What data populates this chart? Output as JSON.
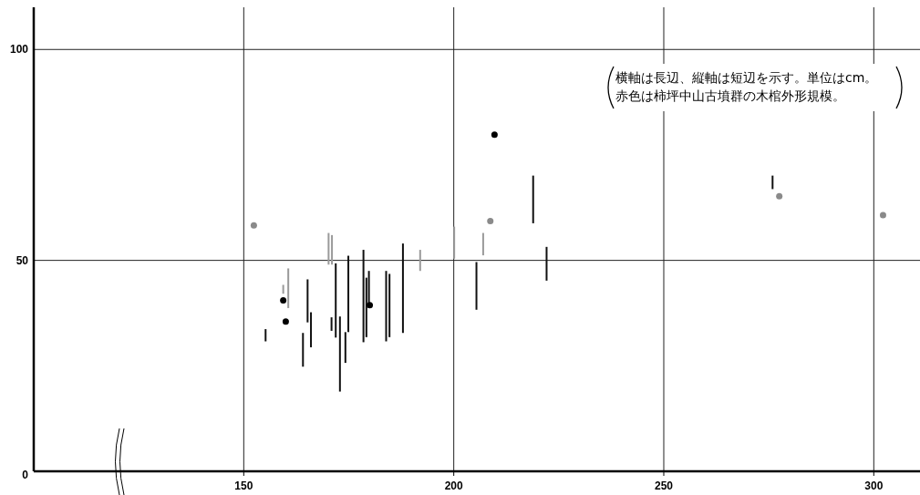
{
  "chart_data": {
    "type": "bar",
    "xlim": [
      100,
      311
    ],
    "xticks": [
      150,
      200,
      250,
      300
    ],
    "ylim": [
      0,
      110
    ],
    "yticks": [
      0,
      50,
      100
    ],
    "grid": true,
    "annotations": [
      "横軸は長辺、縦軸は短辺を示す。単位はcm。",
      "赤色は柿坪中山古墳群の木棺外形規模。"
    ],
    "series": [
      {
        "type": "bar",
        "color": "#111111",
        "x": [
          155.2,
          164.1,
          165.2,
          166,
          170.9,
          171.9,
          172.9,
          174.2,
          174.9,
          178.5,
          179.2,
          179.8,
          183.9,
          184.7,
          187.9,
          205.4,
          218.9,
          222.1,
          275.9
        ],
        "base": [
          30.8,
          24.8,
          35.3,
          29.4,
          33.3,
          31.7,
          18.9,
          25.7,
          33,
          30.6,
          31.8,
          39.6,
          30.8,
          31.8,
          32.8,
          38.3,
          58.8,
          45.2,
          66.9
        ],
        "values": [
          2.9,
          8,
          10.2,
          8.3,
          3.2,
          17.6,
          17.8,
          7.3,
          18.1,
          21.9,
          14.1,
          7.9,
          16.7,
          15,
          21.2,
          11.3,
          11.3,
          8,
          3.2
        ]
      },
      {
        "type": "bar",
        "color": "#9a9a9a",
        "x": [
          159.4,
          160.6,
          170.2,
          171,
          192,
          200.1,
          207
        ],
        "base": [
          42.1,
          38.7,
          49,
          49,
          47.5,
          50.4,
          51.2
        ],
        "values": [
          2.1,
          9.4,
          7.5,
          7,
          5,
          7.6,
          5.3
        ]
      },
      {
        "type": "scatter",
        "color": "#000000",
        "marker": "circle",
        "x": [
          159.4,
          160,
          180,
          209.7
        ],
        "values": [
          40.5,
          35.5,
          39.4,
          79.8
        ]
      },
      {
        "type": "scatter",
        "color": "#8a8a8a",
        "marker": "circle",
        "x": [
          152.4,
          208.7,
          277.5,
          302.2
        ],
        "values": [
          58.3,
          59.3,
          65.2,
          60.7
        ]
      }
    ]
  }
}
